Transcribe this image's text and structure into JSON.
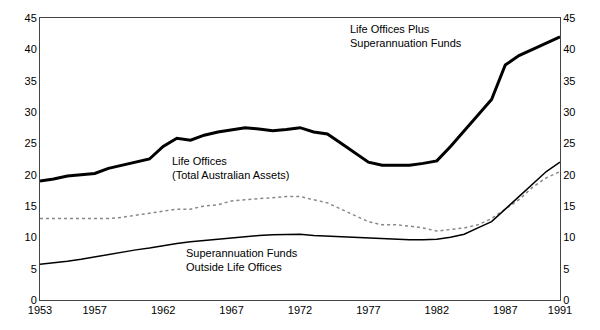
{
  "chart_data": {
    "type": "line",
    "x": [
      1953,
      1954,
      1955,
      1956,
      1957,
      1958,
      1959,
      1960,
      1961,
      1962,
      1963,
      1964,
      1965,
      1966,
      1967,
      1968,
      1969,
      1970,
      1971,
      1972,
      1973,
      1974,
      1975,
      1976,
      1977,
      1978,
      1979,
      1980,
      1981,
      1982,
      1983,
      1984,
      1985,
      1986,
      1987,
      1988,
      1989,
      1990,
      1991
    ],
    "series": [
      {
        "color": "#000000",
        "line_style": "solid",
        "values": [
          19.0,
          19.3,
          19.8,
          20.0,
          20.2,
          21.0,
          21.5,
          22.0,
          22.5,
          24.5,
          25.8,
          25.5,
          26.3,
          26.8,
          27.2,
          27.5,
          27.3,
          27.0,
          27.2,
          27.5,
          26.8,
          26.5,
          25.0,
          23.5,
          22.0,
          21.5,
          21.5,
          21.5,
          21.8,
          22.2,
          24.5,
          27.0,
          29.5,
          32.0,
          37.5,
          39.0,
          40.0,
          41.0,
          42.0
        ]
      },
      {
        "color": "#888888",
        "line_style": "dotted",
        "values": [
          13.0,
          13.0,
          13.0,
          13.0,
          13.0,
          13.0,
          13.2,
          13.5,
          13.8,
          14.2,
          14.5,
          14.5,
          15.0,
          15.2,
          15.8,
          16.0,
          16.2,
          16.3,
          16.5,
          16.5,
          16.0,
          15.5,
          14.5,
          13.5,
          12.5,
          12.0,
          12.0,
          11.8,
          11.5,
          11.0,
          11.2,
          11.5,
          12.0,
          13.0,
          14.5,
          16.0,
          18.0,
          19.5,
          20.5
        ]
      },
      {
        "color": "#000000",
        "line_style": "solid",
        "values": [
          5.7,
          5.9,
          6.2,
          6.5,
          6.9,
          7.3,
          7.7,
          8.0,
          8.3,
          8.7,
          9.0,
          9.3,
          9.5,
          9.7,
          10.0,
          10.2,
          10.3,
          10.4,
          10.5,
          10.5,
          10.3,
          10.2,
          10.0,
          9.9,
          9.8,
          9.7,
          9.6,
          9.6,
          9.6,
          9.7,
          10.0,
          10.5,
          11.5,
          12.5,
          14.5,
          16.5,
          18.5,
          20.5,
          22.0
        ]
      }
    ],
    "xlim": [
      1953,
      1991
    ],
    "xticks": [
      1953,
      1957,
      1962,
      1967,
      1972,
      1977,
      1982,
      1987,
      1991
    ],
    "ylim": [
      0,
      45
    ],
    "yticks": [
      0,
      5,
      10,
      15,
      20,
      25,
      30,
      35,
      40,
      45
    ],
    "y2lim": [
      0,
      45
    ],
    "y2ticks": [
      0,
      5,
      10,
      15,
      20,
      25,
      30,
      35,
      40,
      45
    ],
    "grid": false,
    "annotations": [
      {
        "text": "Life Offices Plus\nSuperannuation Funds",
        "x": 1975.5,
        "y": 44.5
      },
      {
        "text": "Life Offices\n(Total Australian Assets)",
        "x": 1962.5,
        "y": 23.5
      },
      {
        "text": "Superannuation Funds\nOutside Life Offices",
        "x": 1963.5,
        "y": 8.8
      }
    ]
  }
}
